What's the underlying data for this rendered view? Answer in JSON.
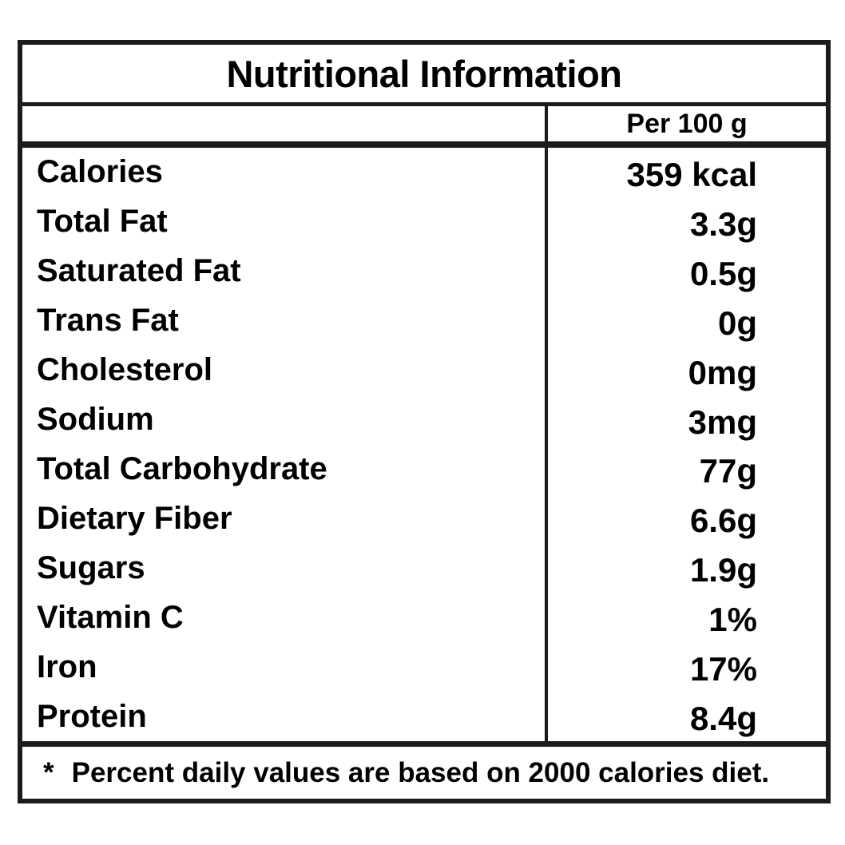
{
  "page": {
    "background_color": "#ffffff",
    "border_color": "#1b1b1b",
    "text_color": "#000000"
  },
  "table": {
    "title": "Nutritional Information",
    "column_header": "Per 100 g",
    "rows": [
      {
        "label": "Calories",
        "value": "359 kcal"
      },
      {
        "label": "Total Fat",
        "value": "3.3g"
      },
      {
        "label": "Saturated Fat",
        "value": "0.5g"
      },
      {
        "label": "Trans Fat",
        "value": "0g"
      },
      {
        "label": "Cholesterol",
        "value": "0mg"
      },
      {
        "label": "Sodium",
        "value": "3mg"
      },
      {
        "label": "Total Carbohydrate",
        "value": "77g"
      },
      {
        "label": "Dietary Fiber",
        "value": "6.6g"
      },
      {
        "label": "Sugars",
        "value": "1.9g"
      },
      {
        "label": "Vitamin C",
        "value": "1%"
      },
      {
        "label": "Iron",
        "value": "17%"
      },
      {
        "label": "Protein",
        "value": "8.4g"
      }
    ],
    "footnote_marker": "*",
    "footnote_text": "Percent daily values are based on 2000 calories diet."
  }
}
